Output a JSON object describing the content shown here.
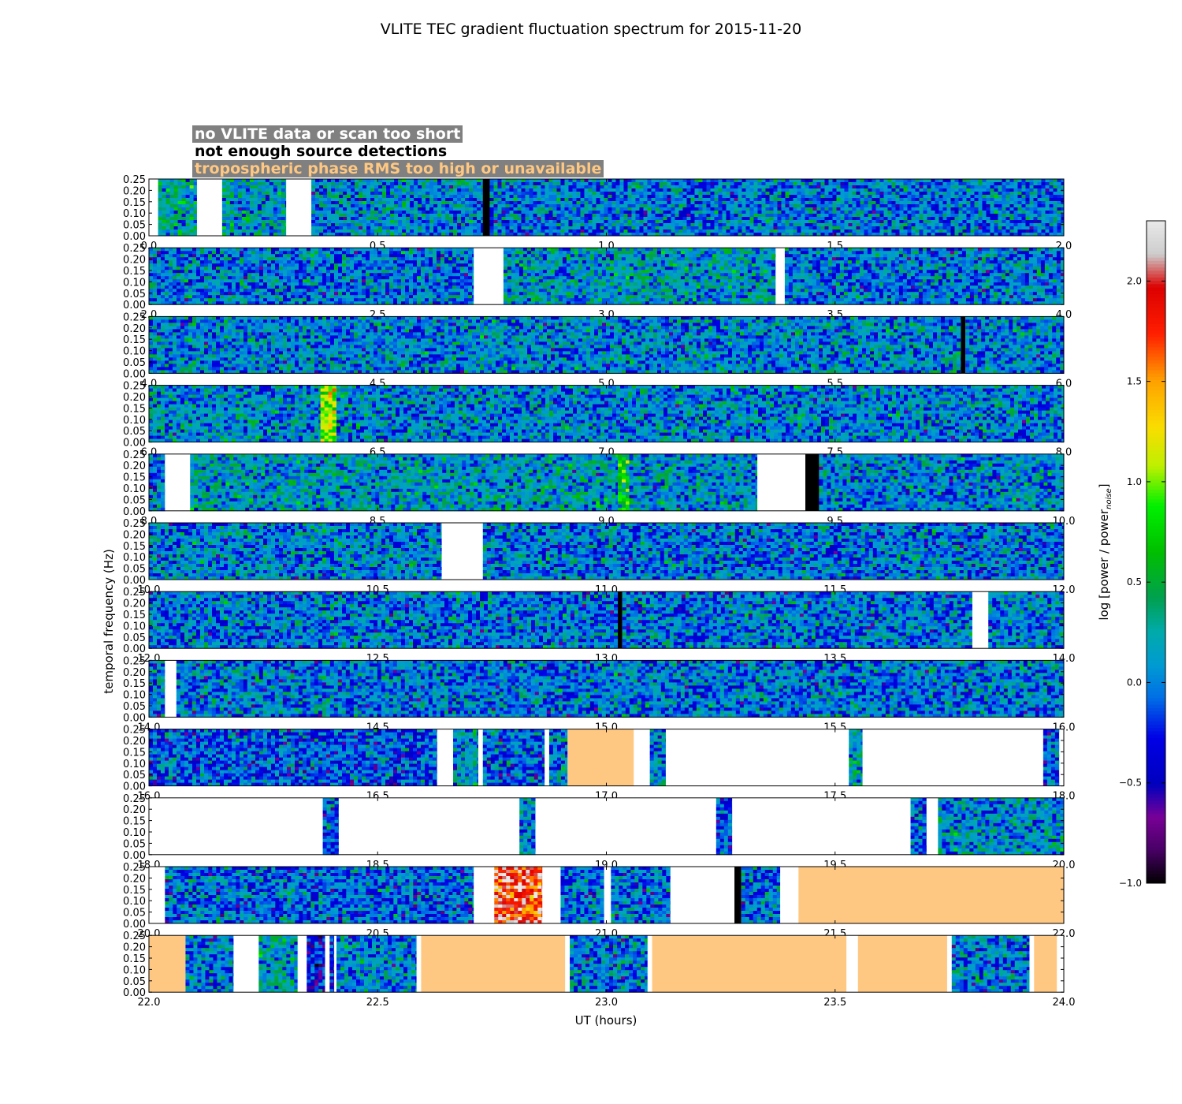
{
  "chart_data": {
    "type": "heatmap",
    "title": "VLITE TEC gradient fluctuation spectrum for 2015-11-20",
    "xlabel": "UT (hours)",
    "ylabel": "temporal frequency (Hz)",
    "colorbar_label": "log [power / power",
    "colorbar_label_subscript": "noise",
    "colorbar_label_end": "]",
    "colorbar_range": [
      -1.0,
      2.3
    ],
    "colorbar_ticks": [
      "−1.0",
      "−0.5",
      "0.0",
      "0.5",
      "1.0",
      "1.5",
      "2.0"
    ],
    "colorbar_tick_values": [
      -1.0,
      -0.5,
      0.0,
      0.5,
      1.0,
      1.5,
      2.0
    ],
    "colormap": "nipy_spectral",
    "y_ticks": [
      "0.00",
      "0.05",
      "0.10",
      "0.15",
      "0.20",
      "0.25"
    ],
    "y_tick_values": [
      0.0,
      0.05,
      0.1,
      0.15,
      0.2,
      0.25
    ],
    "ylim": [
      0,
      0.25
    ],
    "legend": [
      {
        "label": "no VLITE data or scan too short",
        "text_color": "#ffffff",
        "box_color": "#808080"
      },
      {
        "label": "not enough source detections",
        "text_color": "#000000",
        "box_color": "#ffffff"
      },
      {
        "label": "tropospheric phase RMS too high or unavailable",
        "text_color": "#ffc882",
        "box_color": "#808080"
      }
    ],
    "category_colors": {
      "no_data": "#ffffff",
      "few_detections": "#000000",
      "tropo": "#ffc882"
    },
    "panels": [
      {
        "xlim": [
          0,
          2
        ],
        "ticks": [
          "0.0",
          "0.5",
          "1.0",
          "1.5",
          "2.0"
        ],
        "segments": [
          {
            "from": 0.0,
            "to": 0.02,
            "kind": "no_data"
          },
          {
            "from": 0.02,
            "to": 0.105,
            "kind": "data",
            "level": 0.25
          },
          {
            "from": 0.105,
            "to": 0.16,
            "kind": "no_data"
          },
          {
            "from": 0.16,
            "to": 0.3,
            "kind": "data",
            "level": 0.15
          },
          {
            "from": 0.3,
            "to": 0.355,
            "kind": "no_data"
          },
          {
            "from": 0.355,
            "to": 0.73,
            "kind": "data",
            "level": 0.05
          },
          {
            "from": 0.73,
            "to": 0.745,
            "kind": "few_detections"
          },
          {
            "from": 0.745,
            "to": 2.0,
            "kind": "data",
            "level": 0.0
          }
        ]
      },
      {
        "xlim": [
          2,
          4
        ],
        "ticks": [
          "2.0",
          "2.5",
          "3.0",
          "3.5",
          "4.0"
        ],
        "segments": [
          {
            "from": 2.0,
            "to": 2.71,
            "kind": "data",
            "level": 0.0
          },
          {
            "from": 2.71,
            "to": 2.775,
            "kind": "no_data"
          },
          {
            "from": 2.775,
            "to": 3.37,
            "kind": "data",
            "level": 0.15
          },
          {
            "from": 3.37,
            "to": 3.39,
            "kind": "no_data"
          },
          {
            "from": 3.39,
            "to": 4.0,
            "kind": "data",
            "level": 0.0
          }
        ]
      },
      {
        "xlim": [
          4,
          6
        ],
        "ticks": [
          "4.0",
          "4.5",
          "5.0",
          "5.5",
          "6.0"
        ],
        "segments": [
          {
            "from": 4.0,
            "to": 5.775,
            "kind": "data",
            "level": 0.05
          },
          {
            "from": 5.775,
            "to": 5.785,
            "kind": "few_detections"
          },
          {
            "from": 5.785,
            "to": 6.0,
            "kind": "data",
            "level": 0.05
          }
        ]
      },
      {
        "xlim": [
          6,
          8
        ],
        "ticks": [
          "6.0",
          "6.5",
          "7.0",
          "7.5",
          "8.0"
        ],
        "segments": [
          {
            "from": 6.0,
            "to": 6.375,
            "kind": "data",
            "level": 0.1
          },
          {
            "from": 6.375,
            "to": 6.41,
            "kind": "data",
            "level": 1.0
          },
          {
            "from": 6.41,
            "to": 8.0,
            "kind": "data",
            "level": 0.05
          }
        ]
      },
      {
        "xlim": [
          8,
          10
        ],
        "ticks": [
          "8.0",
          "8.5",
          "9.0",
          "9.5",
          "10.0"
        ],
        "segments": [
          {
            "from": 8.0,
            "to": 8.035,
            "kind": "data",
            "level": 0.0
          },
          {
            "from": 8.035,
            "to": 8.09,
            "kind": "no_data"
          },
          {
            "from": 8.09,
            "to": 9.025,
            "kind": "data",
            "level": 0.15
          },
          {
            "from": 9.025,
            "to": 9.05,
            "kind": "data",
            "level": 0.6
          },
          {
            "from": 9.05,
            "to": 9.33,
            "kind": "data",
            "level": 0.1
          },
          {
            "from": 9.33,
            "to": 9.435,
            "kind": "no_data"
          },
          {
            "from": 9.435,
            "to": 9.465,
            "kind": "few_detections"
          },
          {
            "from": 9.465,
            "to": 10.0,
            "kind": "data",
            "level": 0.05
          }
        ]
      },
      {
        "xlim": [
          10,
          12
        ],
        "ticks": [
          "10.0",
          "10.5",
          "11.0",
          "11.5",
          "12.0"
        ],
        "segments": [
          {
            "from": 10.0,
            "to": 10.64,
            "kind": "data",
            "level": 0.05
          },
          {
            "from": 10.64,
            "to": 10.73,
            "kind": "no_data"
          },
          {
            "from": 10.73,
            "to": 12.0,
            "kind": "data",
            "level": 0.0
          }
        ]
      },
      {
        "xlim": [
          12,
          14
        ],
        "ticks": [
          "12.0",
          "12.5",
          "13.0",
          "13.5",
          "14.0"
        ],
        "segments": [
          {
            "from": 12.0,
            "to": 13.025,
            "kind": "data",
            "level": 0.0
          },
          {
            "from": 13.025,
            "to": 13.035,
            "kind": "few_detections"
          },
          {
            "from": 13.035,
            "to": 13.8,
            "kind": "data",
            "level": 0.0
          },
          {
            "from": 13.8,
            "to": 13.835,
            "kind": "no_data"
          },
          {
            "from": 13.835,
            "to": 14.0,
            "kind": "data",
            "level": 0.05
          }
        ]
      },
      {
        "xlim": [
          14,
          16
        ],
        "ticks": [
          "14.0",
          "14.5",
          "15.0",
          "15.5",
          "16.0"
        ],
        "segments": [
          {
            "from": 14.0,
            "to": 14.035,
            "kind": "data",
            "level": 0.0
          },
          {
            "from": 14.035,
            "to": 14.06,
            "kind": "no_data"
          },
          {
            "from": 14.06,
            "to": 16.0,
            "kind": "data",
            "level": 0.0
          }
        ]
      },
      {
        "xlim": [
          16,
          18
        ],
        "ticks": [
          "16.0",
          "16.5",
          "17.0",
          "17.5",
          "18.0"
        ],
        "segments": [
          {
            "from": 16.0,
            "to": 16.63,
            "kind": "data",
            "level": -0.1
          },
          {
            "from": 16.63,
            "to": 16.665,
            "kind": "no_data"
          },
          {
            "from": 16.665,
            "to": 16.72,
            "kind": "data",
            "level": 0.1
          },
          {
            "from": 16.72,
            "to": 16.73,
            "kind": "no_data"
          },
          {
            "from": 16.73,
            "to": 16.865,
            "kind": "data",
            "level": -0.1
          },
          {
            "from": 16.865,
            "to": 16.875,
            "kind": "no_data"
          },
          {
            "from": 16.875,
            "to": 16.915,
            "kind": "data",
            "level": 0.05
          },
          {
            "from": 16.915,
            "to": 17.06,
            "kind": "tropo"
          },
          {
            "from": 17.06,
            "to": 17.095,
            "kind": "no_data"
          },
          {
            "from": 17.095,
            "to": 17.13,
            "kind": "data",
            "level": 0.05
          },
          {
            "from": 17.13,
            "to": 17.53,
            "kind": "no_data"
          },
          {
            "from": 17.53,
            "to": 17.56,
            "kind": "data",
            "level": 0.2
          },
          {
            "from": 17.56,
            "to": 17.955,
            "kind": "no_data"
          },
          {
            "from": 17.955,
            "to": 17.99,
            "kind": "data",
            "level": -0.1
          },
          {
            "from": 17.99,
            "to": 18.0,
            "kind": "no_data"
          }
        ]
      },
      {
        "xlim": [
          18,
          20
        ],
        "ticks": [
          "18.0",
          "18.5",
          "19.0",
          "19.5",
          "20.0"
        ],
        "segments": [
          {
            "from": 18.0,
            "to": 18.38,
            "kind": "no_data"
          },
          {
            "from": 18.38,
            "to": 18.415,
            "kind": "data",
            "level": -0.1
          },
          {
            "from": 18.415,
            "to": 18.81,
            "kind": "no_data"
          },
          {
            "from": 18.81,
            "to": 18.845,
            "kind": "data",
            "level": 0.05
          },
          {
            "from": 18.845,
            "to": 19.24,
            "kind": "no_data"
          },
          {
            "from": 19.24,
            "to": 19.275,
            "kind": "data",
            "level": -0.1
          },
          {
            "from": 19.275,
            "to": 19.665,
            "kind": "no_data"
          },
          {
            "from": 19.665,
            "to": 19.7,
            "kind": "data",
            "level": -0.1
          },
          {
            "from": 19.7,
            "to": 19.725,
            "kind": "no_data"
          },
          {
            "from": 19.725,
            "to": 20.0,
            "kind": "data",
            "level": 0.1
          }
        ]
      },
      {
        "xlim": [
          20,
          22
        ],
        "ticks": [
          "20.0",
          "20.5",
          "21.0",
          "21.5",
          "22.0"
        ],
        "segments": [
          {
            "from": 20.0,
            "to": 20.035,
            "kind": "no_data"
          },
          {
            "from": 20.035,
            "to": 20.71,
            "kind": "data",
            "level": -0.05
          },
          {
            "from": 20.71,
            "to": 20.755,
            "kind": "no_data"
          },
          {
            "from": 20.755,
            "to": 20.86,
            "kind": "data",
            "level": 1.9
          },
          {
            "from": 20.86,
            "to": 20.9,
            "kind": "no_data"
          },
          {
            "from": 20.9,
            "to": 20.995,
            "kind": "data",
            "level": 0.0
          },
          {
            "from": 20.995,
            "to": 21.01,
            "kind": "no_data"
          },
          {
            "from": 21.01,
            "to": 21.14,
            "kind": "data",
            "level": -0.05
          },
          {
            "from": 21.14,
            "to": 21.28,
            "kind": "no_data"
          },
          {
            "from": 21.28,
            "to": 21.295,
            "kind": "few_detections"
          },
          {
            "from": 21.295,
            "to": 21.38,
            "kind": "data",
            "level": 0.0
          },
          {
            "from": 21.38,
            "to": 21.42,
            "kind": "no_data"
          },
          {
            "from": 21.42,
            "to": 22.0,
            "kind": "tropo"
          }
        ]
      },
      {
        "xlim": [
          22,
          24
        ],
        "ticks": [
          "22.0",
          "22.5",
          "23.0",
          "23.5",
          "24.0"
        ],
        "segments": [
          {
            "from": 22.0,
            "to": 22.08,
            "kind": "tropo"
          },
          {
            "from": 22.08,
            "to": 22.185,
            "kind": "data",
            "level": 0.0
          },
          {
            "from": 22.185,
            "to": 22.24,
            "kind": "no_data"
          },
          {
            "from": 22.24,
            "to": 22.325,
            "kind": "data",
            "level": 0.2
          },
          {
            "from": 22.325,
            "to": 22.345,
            "kind": "no_data"
          },
          {
            "from": 22.345,
            "to": 22.385,
            "kind": "data",
            "level": -0.3
          },
          {
            "from": 22.385,
            "to": 22.395,
            "kind": "no_data"
          },
          {
            "from": 22.395,
            "to": 22.405,
            "kind": "data",
            "level": -0.3
          },
          {
            "from": 22.405,
            "to": 22.41,
            "kind": "no_data"
          },
          {
            "from": 22.41,
            "to": 22.585,
            "kind": "data",
            "level": 0.05
          },
          {
            "from": 22.585,
            "to": 22.595,
            "kind": "no_data"
          },
          {
            "from": 22.595,
            "to": 22.91,
            "kind": "tropo"
          },
          {
            "from": 22.91,
            "to": 22.92,
            "kind": "no_data"
          },
          {
            "from": 22.92,
            "to": 23.09,
            "kind": "data",
            "level": 0.0
          },
          {
            "from": 23.09,
            "to": 23.1,
            "kind": "no_data"
          },
          {
            "from": 23.1,
            "to": 23.525,
            "kind": "tropo"
          },
          {
            "from": 23.525,
            "to": 23.55,
            "kind": "no_data"
          },
          {
            "from": 23.55,
            "to": 23.745,
            "kind": "tropo"
          },
          {
            "from": 23.745,
            "to": 23.755,
            "kind": "no_data"
          },
          {
            "from": 23.755,
            "to": 23.925,
            "kind": "data",
            "level": 0.0
          },
          {
            "from": 23.925,
            "to": 23.935,
            "kind": "no_data"
          },
          {
            "from": 23.935,
            "to": 23.985,
            "kind": "tropo"
          },
          {
            "from": 23.985,
            "to": 24.0,
            "kind": "no_data"
          }
        ]
      }
    ]
  }
}
